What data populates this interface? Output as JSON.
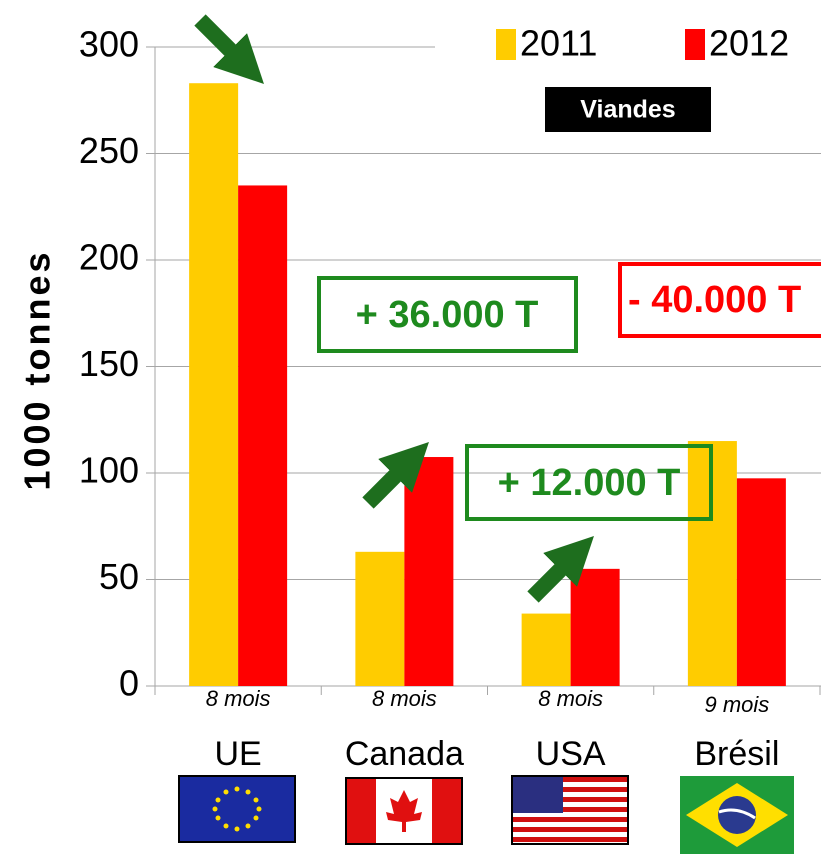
{
  "chart_data": {
    "type": "bar",
    "ylabel": "1000 tonnes",
    "badge": "Viandes",
    "categories": [
      "UE",
      "Canada",
      "USA",
      "Brésil"
    ],
    "period_labels": [
      "8 mois",
      "8 mois",
      "8 mois",
      "9 mois"
    ],
    "series": [
      {
        "name": "2011",
        "color": "#ffcc00",
        "values": [
          283,
          63,
          34,
          115
        ]
      },
      {
        "name": "2012",
        "color": "#ff0000",
        "values": [
          235,
          107.5,
          55,
          97.5
        ]
      }
    ],
    "ylim": [
      0,
      300
    ],
    "yticks": [
      0,
      50,
      100,
      150,
      200,
      250,
      300
    ],
    "grid": true,
    "annotations": [
      {
        "text": "+ 36.000 T",
        "color": "#1e8a1e"
      },
      {
        "text": "+ 12.000 T",
        "color": "#1e8a1e"
      },
      {
        "text": "- 40.000 T",
        "color": "#ff0000"
      }
    ]
  }
}
